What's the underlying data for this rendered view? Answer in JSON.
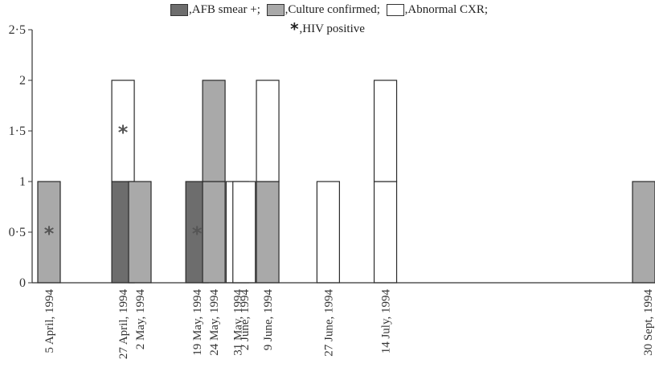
{
  "chart_data": {
    "type": "bar",
    "stacked": true,
    "ylim": [
      0,
      2.5
    ],
    "yticks": [
      "0",
      "0·5",
      "1",
      "1·5",
      "2",
      "2·5"
    ],
    "legend_placement": "top",
    "legend": [
      {
        "key": "afb",
        "label": ",AFB smear +;",
        "color": "#6d6d6d"
      },
      {
        "key": "culture",
        "label": ",Culture confirmed;",
        "color": "#a9a9a9"
      },
      {
        "key": "cxr",
        "label": ",Abnormal CXR;",
        "color": "#ffffff"
      },
      {
        "key": "hiv",
        "label": ",HIV positive",
        "icon": "asterisk-icon"
      }
    ],
    "series": [
      {
        "key": "afb",
        "values": [
          0,
          1,
          0,
          1,
          0,
          0,
          0,
          0,
          0,
          0,
          0
        ]
      },
      {
        "key": "culture",
        "values": [
          1,
          0,
          1,
          0,
          2,
          0,
          0,
          1,
          0,
          0,
          1
        ]
      },
      {
        "key": "cxr",
        "values": [
          0,
          1,
          0,
          0,
          0,
          1,
          1,
          1,
          1,
          2,
          0
        ]
      }
    ],
    "categories": [
      "5 April, 1994",
      "27 April, 1994",
      "2 May, 1994",
      "19 May, 1994",
      "24 May, 1994",
      "31 May, 1994",
      "2 June, 1994",
      "9 June, 1994",
      "27 June, 1994",
      "14 July, 1994",
      "30 Sept, 1994"
    ],
    "dates": [
      "1994-04-05",
      "1994-04-27",
      "1994-05-02",
      "1994-05-19",
      "1994-05-24",
      "1994-05-31",
      "1994-06-02",
      "1994-06-09",
      "1994-06-27",
      "1994-07-14",
      "1994-09-30"
    ],
    "hiv_markers": [
      {
        "category": "5 April, 1994",
        "y": 0.5
      },
      {
        "category": "27 April, 1994",
        "y": 1.5
      },
      {
        "category": "19 May, 1994",
        "y": 0.5
      }
    ],
    "hiv_symbol": "*",
    "grid": false
  }
}
